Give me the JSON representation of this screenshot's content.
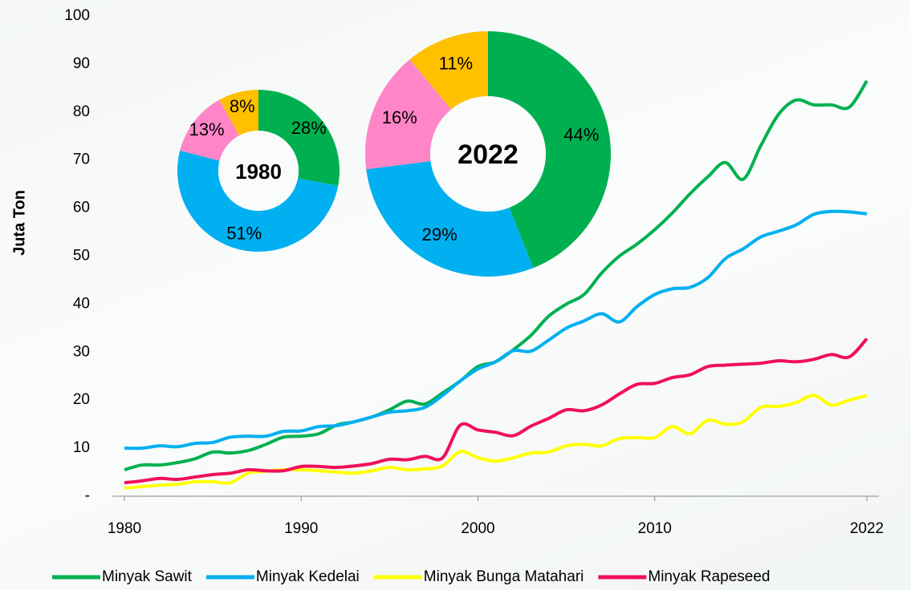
{
  "chart_data": [
    {
      "type": "line",
      "y_label": "Juta Ton",
      "x": [
        1980,
        1981,
        1982,
        1983,
        1984,
        1985,
        1986,
        1987,
        1988,
        1989,
        1990,
        1991,
        1992,
        1993,
        1994,
        1995,
        1996,
        1997,
        1998,
        1999,
        2000,
        2001,
        2002,
        2003,
        2004,
        2005,
        2006,
        2007,
        2008,
        2009,
        2010,
        2011,
        2012,
        2013,
        2014,
        2015,
        2016,
        2017,
        2018,
        2019,
        2020,
        2021,
        2022
      ],
      "xlim": [
        1980,
        2022
      ],
      "xticks": [
        1980,
        1990,
        2000,
        2010,
        2022
      ],
      "ylim": [
        0,
        100
      ],
      "yticks": [
        {
          "value": 0,
          "label": "-"
        },
        10,
        20,
        30,
        40,
        50,
        60,
        70,
        80,
        90,
        100
      ],
      "legend": "bottom",
      "series": [
        {
          "name": "Minyak Sawit",
          "color": "#00b050",
          "values": [
            5.5,
            6.5,
            6.5,
            7,
            7.8,
            9.2,
            9,
            9.5,
            10.8,
            12.3,
            12.5,
            13,
            14.8,
            15.5,
            16.5,
            18,
            19.8,
            19.2,
            21.5,
            24,
            27,
            28,
            30.5,
            33.5,
            37.5,
            40,
            42,
            46.5,
            50,
            52.5,
            55.5,
            59,
            63,
            66.5,
            69.5,
            66,
            73,
            79.5,
            82.5,
            81.5,
            81.5,
            81,
            86.5
          ]
        },
        {
          "name": "Minyak Kedelai",
          "color": "#00b0f0",
          "values": [
            10,
            10,
            10.5,
            10.3,
            11,
            11.2,
            12.3,
            12.5,
            12.5,
            13.5,
            13.6,
            14.5,
            14.7,
            15.5,
            16.5,
            17.5,
            17.8,
            18.5,
            21,
            24,
            26.5,
            28,
            30.3,
            30.2,
            32.5,
            35,
            36.5,
            38,
            36.3,
            39.5,
            42,
            43.2,
            43.5,
            45.5,
            49.5,
            51.5,
            54,
            55.2,
            56.5,
            58.7,
            59.3,
            59.2,
            58.8
          ]
        },
        {
          "name": "Minyak Bunga Matahari",
          "color": "#ffff00",
          "values": [
            1.7,
            2,
            2.3,
            2.5,
            3,
            3,
            2.8,
            4.8,
            5.2,
            5.5,
            5.5,
            5.3,
            5,
            4.8,
            5.3,
            6,
            5.5,
            5.7,
            6.3,
            9.3,
            8,
            7.3,
            8,
            9,
            9.2,
            10.5,
            10.8,
            10.5,
            12,
            12.2,
            12.2,
            14.5,
            13,
            15.8,
            15,
            15.5,
            18.5,
            18.7,
            19.5,
            21,
            19,
            20,
            21
          ]
        },
        {
          "name": "Minyak Rapeseed",
          "color": "#f0105a",
          "values": [
            2.8,
            3.2,
            3.7,
            3.5,
            4,
            4.5,
            4.8,
            5.5,
            5.3,
            5.3,
            6.2,
            6.2,
            6,
            6.3,
            6.8,
            7.7,
            7.6,
            8.3,
            8,
            14.8,
            13.8,
            13.3,
            12.6,
            14.6,
            16.2,
            18,
            17.8,
            19,
            21.3,
            23.3,
            23.5,
            24.7,
            25.3,
            27,
            27.3,
            27.5,
            27.7,
            28.2,
            28,
            28.5,
            29.5,
            29,
            32.8
          ]
        }
      ]
    },
    {
      "type": "donut",
      "title": "1980",
      "values": [
        28,
        51,
        13,
        8
      ],
      "value_labels": [
        "28%",
        "51%",
        "13%",
        "8%"
      ],
      "colors": [
        "#00b050",
        "#00b0f0",
        "#ff85c8",
        "#ffc000"
      ]
    },
    {
      "type": "donut",
      "title": "2022",
      "values": [
        44,
        29,
        16,
        11
      ],
      "value_labels": [
        "44%",
        "29%",
        "16%",
        "11%"
      ],
      "colors": [
        "#00b050",
        "#00b0f0",
        "#ff85c8",
        "#ffc000"
      ]
    }
  ]
}
